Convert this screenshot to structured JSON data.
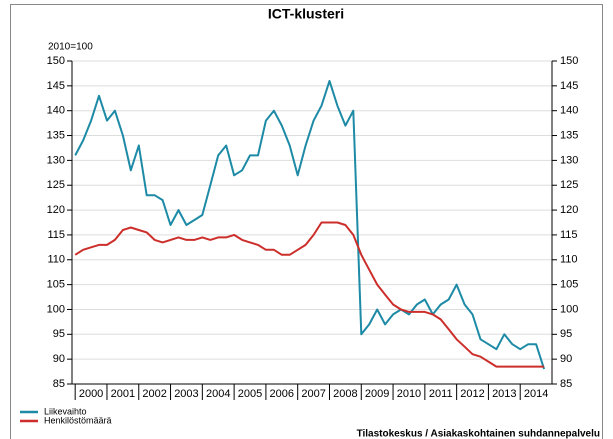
{
  "chart_data": {
    "type": "line",
    "title": "ICT-klusteri",
    "subtitle": "2010=100",
    "x": [
      2000,
      2000.25,
      2000.5,
      2000.75,
      2001,
      2001.25,
      2001.5,
      2001.75,
      2002,
      2002.25,
      2002.5,
      2002.75,
      2003,
      2003.25,
      2003.5,
      2003.75,
      2004,
      2004.25,
      2004.5,
      2004.75,
      2005,
      2005.25,
      2005.5,
      2005.75,
      2006,
      2006.25,
      2006.5,
      2006.75,
      2007,
      2007.25,
      2007.5,
      2007.75,
      2008,
      2008.25,
      2008.5,
      2008.75,
      2009,
      2009.25,
      2009.5,
      2009.75,
      2010,
      2010.25,
      2010.5,
      2010.75,
      2011,
      2011.25,
      2011.5,
      2011.75,
      2012,
      2012.25,
      2012.5,
      2012.75,
      2013,
      2013.25,
      2013.5,
      2013.75,
      2014,
      2014.25,
      2014.5,
      2014.75
    ],
    "series": [
      {
        "name": "Liikevaihto",
        "color": "#1d8aa6",
        "values": [
          131,
          134,
          138,
          143,
          138,
          140,
          135,
          128,
          133,
          123,
          123,
          122,
          117,
          120,
          117,
          118,
          119,
          125,
          131,
          133,
          127,
          128,
          131,
          131,
          138,
          140,
          137,
          133,
          127,
          133,
          138,
          141,
          146,
          141,
          137,
          140,
          95,
          97,
          100,
          97,
          99,
          100,
          99,
          101,
          102,
          99,
          101,
          102,
          105,
          101,
          99,
          94,
          93,
          92,
          95,
          93,
          92,
          93,
          93,
          88
        ]
      },
      {
        "name": "Henkilöstömäärä",
        "color": "#cc2f2b",
        "values": [
          111,
          112,
          112.5,
          113,
          113,
          114,
          116,
          116.5,
          116,
          115.5,
          114,
          113.5,
          114,
          114.5,
          114,
          114,
          114.5,
          114,
          114.5,
          114.5,
          115,
          114,
          113.5,
          113,
          112,
          112,
          111,
          111,
          112,
          113,
          115,
          117.5,
          117.5,
          117.5,
          117,
          115,
          111,
          108,
          105,
          103,
          101,
          100,
          99.5,
          99.5,
          99.5,
          99,
          98,
          96,
          94,
          92.5,
          91,
          90.5,
          89.5,
          88.5,
          88.5,
          88.5,
          88.5,
          88.5,
          88.5,
          88.5
        ]
      }
    ],
    "xlim": [
      1999.9,
      2015
    ],
    "xticks": [
      {
        "value": 2000.5,
        "label": "2000"
      },
      {
        "value": 2001.5,
        "label": "2001"
      },
      {
        "value": 2002.5,
        "label": "2002"
      },
      {
        "value": 2003.5,
        "label": "2003"
      },
      {
        "value": 2004.5,
        "label": "2004"
      },
      {
        "value": 2005.5,
        "label": "2005"
      },
      {
        "value": 2006.5,
        "label": "2006"
      },
      {
        "value": 2007.5,
        "label": "2007"
      },
      {
        "value": 2008.5,
        "label": "2008"
      },
      {
        "value": 2009.5,
        "label": "2009"
      },
      {
        "value": 2010.5,
        "label": "2010"
      },
      {
        "value": 2011.5,
        "label": "2011"
      },
      {
        "value": 2012.5,
        "label": "2012"
      },
      {
        "value": 2013.5,
        "label": "2013"
      },
      {
        "value": 2014.5,
        "label": "2014"
      }
    ],
    "ylim": [
      85,
      150
    ],
    "yticks": [
      85,
      90,
      95,
      100,
      105,
      110,
      115,
      120,
      125,
      130,
      135,
      140,
      145,
      150
    ],
    "y2lim": [
      85,
      150
    ],
    "y2ticks": [
      85,
      90,
      95,
      100,
      105,
      110,
      115,
      120,
      125,
      130,
      135,
      140,
      145,
      150
    ],
    "grid": true,
    "legend": "bottom-left",
    "source": "Tilastokeskus / Asiakaskohtainen suhdannepalvelu"
  }
}
